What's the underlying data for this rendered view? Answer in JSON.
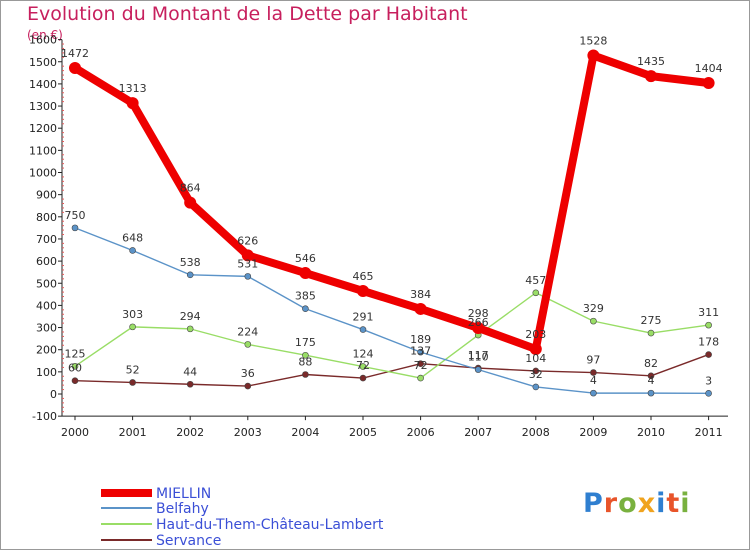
{
  "header": {
    "title": "Evolution du Montant de la Dette par Habitant",
    "subtitle": "(en €)"
  },
  "logo": {
    "text": "Proxiti",
    "letter_colors": [
      "#2f7fd0",
      "#e8542a",
      "#79b13f",
      "#f0a31e",
      "#2f7fd0",
      "#e8542a",
      "#79b13f"
    ]
  },
  "chart_data": {
    "type": "line",
    "x": [
      "2000",
      "2001",
      "2002",
      "2003",
      "2004",
      "2005",
      "2006",
      "2007",
      "2008",
      "2009",
      "2010",
      "2011"
    ],
    "ylim": [
      -100,
      1600
    ],
    "yticks": [
      -100,
      0,
      100,
      200,
      300,
      400,
      500,
      600,
      700,
      800,
      900,
      1000,
      1100,
      1200,
      1300,
      1400,
      1500,
      1600
    ],
    "grid": false,
    "legend_position": "bottom-left",
    "series": [
      {
        "name": "MIELLIN",
        "color": "#ee0000",
        "values": [
          1472,
          1313,
          864,
          626,
          546,
          465,
          384,
          298,
          203,
          1528,
          1435,
          1404
        ]
      },
      {
        "name": "Belfahy",
        "color": "#5b93c8",
        "values": [
          750,
          648,
          538,
          531,
          385,
          291,
          189,
          110,
          32,
          4,
          4,
          3
        ]
      },
      {
        "name": "Haut-du-Them-Château-Lambert",
        "color": "#99dd66",
        "values": [
          125,
          303,
          294,
          224,
          175,
          124,
          72,
          266,
          457,
          329,
          275,
          311
        ]
      },
      {
        "name": "Servance",
        "color": "#7a2a2a",
        "values": [
          60,
          52,
          44,
          36,
          88,
          72,
          137,
          117,
          104,
          97,
          82,
          178
        ]
      }
    ]
  }
}
